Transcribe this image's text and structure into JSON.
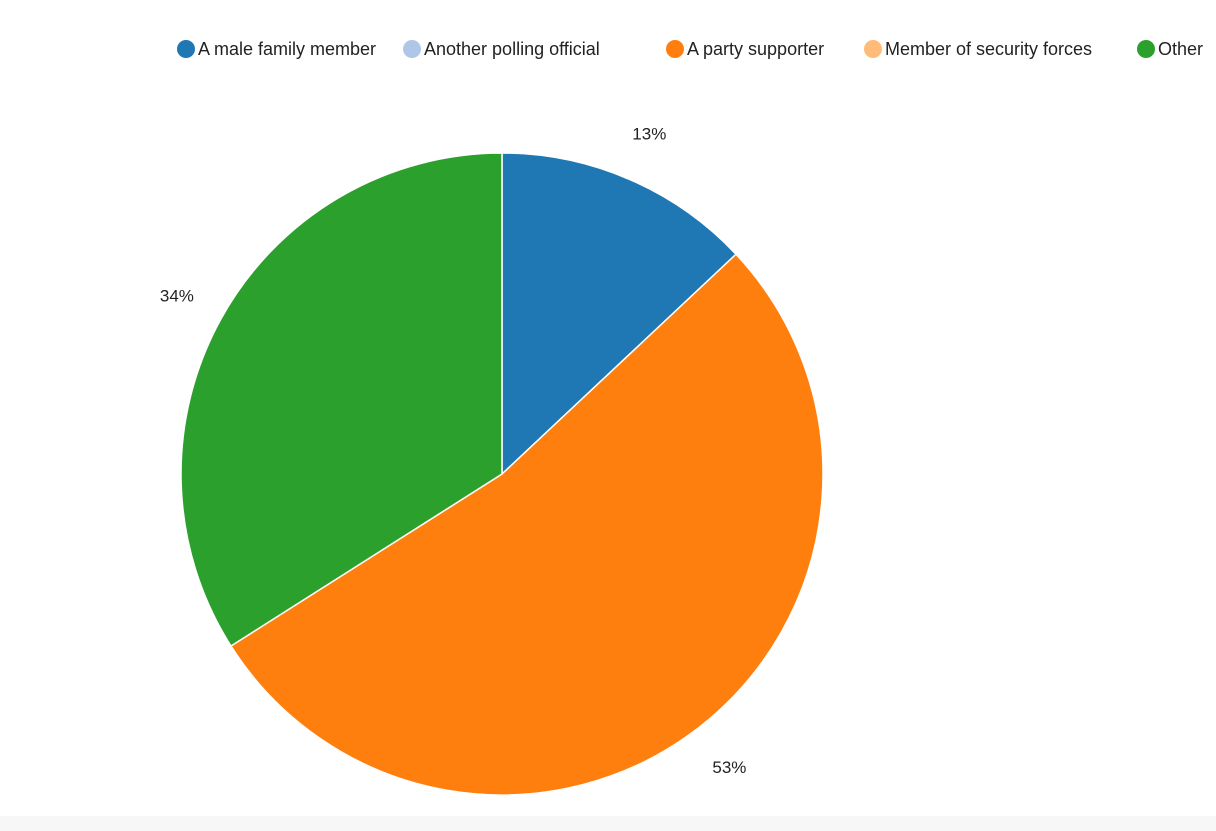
{
  "chart_data": {
    "type": "pie",
    "title": "",
    "legend_position": "top",
    "categories": [
      "A male family member",
      "Another polling official",
      "A party supporter",
      "Member of security forces",
      "Other"
    ],
    "values": [
      13,
      0,
      53,
      0,
      34
    ],
    "value_labels": [
      "13%",
      "",
      "53%",
      "",
      "34%"
    ],
    "colors": [
      "#1f77b4",
      "#aec7e8",
      "#ff7f0e",
      "#ffbb78",
      "#2ca02c"
    ],
    "start_angle_deg": 0,
    "direction": "clockwise"
  }
}
